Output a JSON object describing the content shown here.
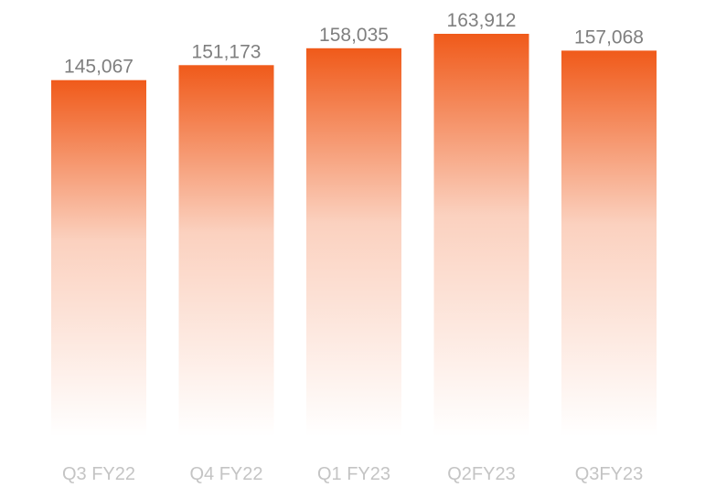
{
  "chart_data": {
    "type": "bar",
    "categories": [
      "Q3 FY22",
      "Q4 FY22",
      "Q1 FY23",
      "Q2FY23",
      "Q3FY23"
    ],
    "values": [
      145067,
      151173,
      158035,
      163912,
      157068
    ],
    "value_labels": [
      "145,067",
      "151,173",
      "158,035",
      "163,912",
      "157,068"
    ],
    "title": "",
    "xlabel": "",
    "ylabel": "",
    "ylim": [
      0,
      163912
    ],
    "grid": false,
    "legend": "none",
    "colors": {
      "bar_top": "#f05a1a",
      "bar_bottom": "#ffffff",
      "value_text": "#7f7f7f",
      "tick_text": "#c4c4c4"
    }
  }
}
